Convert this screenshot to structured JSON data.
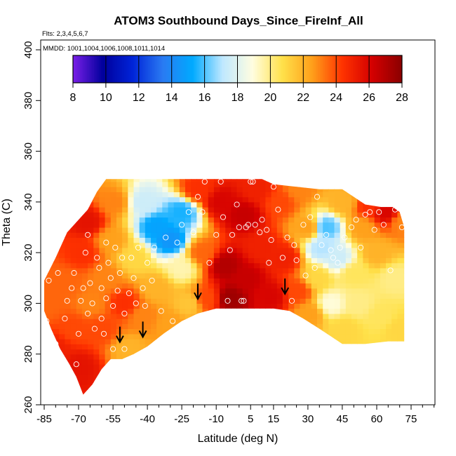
{
  "chart_data": {
    "type": "heatmap",
    "title": "ATOM3 Southbound Days_Since_FireInf_All",
    "flights_note": "Flts: 2,3,4,5,6,7",
    "mmdd_note": "MMDD: 1001,1004,1006,1008,1011,1014",
    "xlabel": "Latitude (deg N)",
    "ylabel": "Theta (C)",
    "xlim": [
      -85,
      85
    ],
    "ylim": [
      260,
      405
    ],
    "xticks": [
      -85,
      -70,
      -55,
      -40,
      -25,
      -10,
      5,
      15,
      30,
      45,
      60,
      75
    ],
    "xtick_labels": [
      "-85",
      "-70",
      "-55",
      "-40",
      "-25",
      "-10",
      "5",
      "15",
      "30",
      "45",
      "60",
      "75"
    ],
    "yticks": [
      260,
      280,
      300,
      320,
      340,
      360,
      380,
      400
    ],
    "ytick_labels": [
      "260",
      "280",
      "300",
      "320",
      "340",
      "360",
      "380",
      "400"
    ],
    "colorbar": {
      "min": 8,
      "max": 28,
      "ticks": [
        8,
        10,
        12,
        14,
        16,
        18,
        20,
        22,
        24,
        26,
        28
      ],
      "tick_labels": [
        "8",
        "10",
        "12",
        "14",
        "16",
        "18",
        "20",
        "22",
        "24",
        "26",
        "28"
      ],
      "colors": [
        "#7b1fe8",
        "#00009c",
        "#0024d8",
        "#2a7af2",
        "#00aaff",
        "#bfe8ff",
        "#fffde0",
        "#ffe14a",
        "#ff9f1a",
        "#ff3300",
        "#d40000",
        "#8a0000"
      ]
    },
    "domain_top": [
      [
        -85,
        309
      ],
      [
        -80,
        318
      ],
      [
        -75,
        328
      ],
      [
        -70,
        333
      ],
      [
        -66,
        337
      ],
      [
        -62,
        344
      ],
      [
        -58,
        349
      ],
      [
        -45,
        349
      ],
      [
        -30,
        349
      ],
      [
        -15,
        349
      ],
      [
        0,
        349
      ],
      [
        10,
        349
      ],
      [
        15,
        347
      ],
      [
        25,
        346
      ],
      [
        35,
        345
      ],
      [
        45,
        345
      ],
      [
        55,
        339
      ],
      [
        62,
        338
      ],
      [
        67,
        338
      ],
      [
        70,
        336
      ],
      [
        72,
        330
      ],
      [
        72,
        285
      ]
    ],
    "domain_bottom": [
      [
        -85,
        297
      ],
      [
        -82,
        290
      ],
      [
        -78,
        282
      ],
      [
        -74,
        276
      ],
      [
        -71,
        271
      ],
      [
        -68,
        264
      ],
      [
        -64,
        268
      ],
      [
        -60,
        274
      ],
      [
        -56,
        278
      ],
      [
        -51,
        278
      ],
      [
        -46,
        280
      ],
      [
        -40,
        283
      ],
      [
        -33,
        288
      ],
      [
        -25,
        293
      ],
      [
        -18,
        296
      ],
      [
        -10,
        298
      ],
      [
        0,
        298
      ],
      [
        10,
        298
      ],
      [
        15,
        298
      ],
      [
        22,
        297
      ],
      [
        28,
        294
      ],
      [
        35,
        290
      ],
      [
        40,
        287
      ],
      [
        45,
        284
      ],
      [
        55,
        284
      ],
      [
        65,
        285
      ],
      [
        72,
        285
      ]
    ],
    "field_nodes": [
      {
        "lat": -84,
        "theta": 300,
        "value": 23.5
      },
      {
        "lat": -80,
        "theta": 282,
        "value": 25.0
      },
      {
        "lat": -76,
        "theta": 308,
        "value": 23.5
      },
      {
        "lat": -72,
        "theta": 290,
        "value": 24.0
      },
      {
        "lat": -70,
        "theta": 275,
        "value": 25.5
      },
      {
        "lat": -68,
        "theta": 320,
        "value": 24.5
      },
      {
        "lat": -66,
        "theta": 332,
        "value": 25.5
      },
      {
        "lat": -64,
        "theta": 300,
        "value": 23.0
      },
      {
        "lat": -60,
        "theta": 290,
        "value": 24.0
      },
      {
        "lat": -58,
        "theta": 310,
        "value": 23.0
      },
      {
        "lat": -56,
        "theta": 325,
        "value": 22.5
      },
      {
        "lat": -54,
        "theta": 340,
        "value": 23.0
      },
      {
        "lat": -50,
        "theta": 300,
        "value": 24.5
      },
      {
        "lat": -48,
        "theta": 282,
        "value": 22.0
      },
      {
        "lat": -46,
        "theta": 318,
        "value": 21.0
      },
      {
        "lat": -42,
        "theta": 340,
        "value": 17.5
      },
      {
        "lat": -42,
        "theta": 295,
        "value": 23.0
      },
      {
        "lat": -36,
        "theta": 330,
        "value": 15.0
      },
      {
        "lat": -36,
        "theta": 306,
        "value": 22.0
      },
      {
        "lat": -30,
        "theta": 325,
        "value": 14.5
      },
      {
        "lat": -30,
        "theta": 292,
        "value": 22.5
      },
      {
        "lat": -25,
        "theta": 336,
        "value": 15.5
      },
      {
        "lat": -25,
        "theta": 314,
        "value": 19.5
      },
      {
        "lat": -22,
        "theta": 300,
        "value": 21.5
      },
      {
        "lat": -18,
        "theta": 345,
        "value": 24.5
      },
      {
        "lat": -16,
        "theta": 320,
        "value": 23.5
      },
      {
        "lat": -14,
        "theta": 302,
        "value": 24.0
      },
      {
        "lat": -8,
        "theta": 340,
        "value": 26.0
      },
      {
        "lat": -6,
        "theta": 315,
        "value": 27.0
      },
      {
        "lat": -4,
        "theta": 302,
        "value": 27.5
      },
      {
        "lat": 2,
        "theta": 335,
        "value": 26.5
      },
      {
        "lat": 3,
        "theta": 310,
        "value": 26.5
      },
      {
        "lat": 8,
        "theta": 345,
        "value": 25.0
      },
      {
        "lat": 10,
        "theta": 322,
        "value": 25.0
      },
      {
        "lat": 14,
        "theta": 303,
        "value": 26.0
      },
      {
        "lat": 18,
        "theta": 340,
        "value": 24.0
      },
      {
        "lat": 20,
        "theta": 318,
        "value": 25.0
      },
      {
        "lat": 26,
        "theta": 345,
        "value": 23.0
      },
      {
        "lat": 26,
        "theta": 305,
        "value": 24.0
      },
      {
        "lat": 30,
        "theta": 330,
        "value": 22.5
      },
      {
        "lat": 31,
        "theta": 296,
        "value": 22.5
      },
      {
        "lat": 34,
        "theta": 310,
        "value": 21.0
      },
      {
        "lat": 36,
        "theta": 322,
        "value": 17.0
      },
      {
        "lat": 38,
        "theta": 330,
        "value": 16.0
      },
      {
        "lat": 40,
        "theta": 300,
        "value": 19.0
      },
      {
        "lat": 43,
        "theta": 318,
        "value": 17.5
      },
      {
        "lat": 45,
        "theta": 340,
        "value": 22.0
      },
      {
        "lat": 46,
        "theta": 290,
        "value": 21.0
      },
      {
        "lat": 50,
        "theta": 312,
        "value": 20.5
      },
      {
        "lat": 52,
        "theta": 300,
        "value": 20.0
      },
      {
        "lat": 54,
        "theta": 330,
        "value": 22.5
      },
      {
        "lat": 57,
        "theta": 338,
        "value": 24.5
      },
      {
        "lat": 60,
        "theta": 320,
        "value": 22.0
      },
      {
        "lat": 62,
        "theta": 295,
        "value": 20.5
      },
      {
        "lat": 64,
        "theta": 336,
        "value": 26.0
      },
      {
        "lat": 68,
        "theta": 310,
        "value": 20.0
      },
      {
        "lat": 70,
        "theta": 290,
        "value": 21.0
      },
      {
        "lat": 71,
        "theta": 332,
        "value": 23.0
      }
    ],
    "observation_points": [
      [
        -84,
        293
      ],
      [
        -83,
        309
      ],
      [
        -80,
        284
      ],
      [
        -79,
        312
      ],
      [
        -76,
        294
      ],
      [
        -75,
        301
      ],
      [
        -73,
        306
      ],
      [
        -72,
        312
      ],
      [
        -71,
        276
      ],
      [
        -70,
        288
      ],
      [
        -69,
        301
      ],
      [
        -68,
        306
      ],
      [
        -67,
        320
      ],
      [
        -66,
        327
      ],
      [
        -66,
        296
      ],
      [
        -65,
        308
      ],
      [
        -64,
        300
      ],
      [
        -63,
        290
      ],
      [
        -62,
        318
      ],
      [
        -61,
        314
      ],
      [
        -60,
        306
      ],
      [
        -60,
        294
      ],
      [
        -59,
        288
      ],
      [
        -58,
        302
      ],
      [
        -58,
        324
      ],
      [
        -57,
        316
      ],
      [
        -56,
        310
      ],
      [
        -55,
        299
      ],
      [
        -55,
        282
      ],
      [
        -54,
        322
      ],
      [
        -53,
        305
      ],
      [
        -52,
        312
      ],
      [
        -51,
        318
      ],
      [
        -50,
        296
      ],
      [
        -50,
        282
      ],
      [
        -48,
        304
      ],
      [
        -47,
        318
      ],
      [
        -46,
        310
      ],
      [
        -45,
        300
      ],
      [
        -44,
        322
      ],
      [
        -42,
        306
      ],
      [
        -41,
        299
      ],
      [
        -40,
        316
      ],
      [
        -38,
        309
      ],
      [
        -37,
        322
      ],
      [
        -34,
        297
      ],
      [
        -32,
        326
      ],
      [
        -29,
        293
      ],
      [
        -27,
        324
      ],
      [
        -25,
        331
      ],
      [
        -22,
        336
      ],
      [
        -20,
        328
      ],
      [
        -18,
        342
      ],
      [
        -16,
        336
      ],
      [
        -15,
        348
      ],
      [
        -13,
        316
      ],
      [
        -10,
        327
      ],
      [
        -8,
        348
      ],
      [
        -7,
        334
      ],
      [
        -5,
        301
      ],
      [
        -4,
        321
      ],
      [
        -3,
        327
      ],
      [
        -1,
        339
      ],
      [
        0,
        330
      ],
      [
        1,
        301
      ],
      [
        2,
        301
      ],
      [
        3,
        330
      ],
      [
        4,
        331
      ],
      [
        5,
        348
      ],
      [
        6,
        348
      ],
      [
        7,
        331
      ],
      [
        9,
        328
      ],
      [
        10,
        333
      ],
      [
        12,
        329
      ],
      [
        13,
        316
      ],
      [
        14,
        325
      ],
      [
        15,
        346
      ],
      [
        17,
        337
      ],
      [
        19,
        318
      ],
      [
        21,
        326
      ],
      [
        23,
        301
      ],
      [
        24,
        323
      ],
      [
        25,
        317
      ],
      [
        28,
        331
      ],
      [
        29,
        311
      ],
      [
        31,
        334
      ],
      [
        33,
        314
      ],
      [
        34,
        342
      ],
      [
        36,
        323
      ],
      [
        38,
        327
      ],
      [
        40,
        321
      ],
      [
        41,
        318
      ],
      [
        43,
        316
      ],
      [
        44,
        322
      ],
      [
        46,
        326
      ],
      [
        49,
        330
      ],
      [
        51,
        333
      ],
      [
        53,
        322
      ],
      [
        55,
        335
      ],
      [
        57,
        336
      ],
      [
        59,
        329
      ],
      [
        61,
        336
      ],
      [
        63,
        331
      ],
      [
        66,
        313
      ],
      [
        68,
        337
      ],
      [
        71,
        330
      ]
    ],
    "arrows": [
      {
        "lat": -52,
        "theta": 285
      },
      {
        "lat": -42,
        "theta": 287
      },
      {
        "lat": -18,
        "theta": 302
      },
      {
        "lat": 20,
        "theta": 304
      }
    ]
  }
}
